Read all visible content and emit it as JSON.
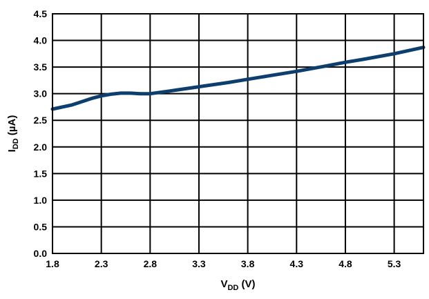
{
  "chart_data": {
    "type": "line",
    "xlabel": {
      "main": "V",
      "sub": "DD",
      "unit": " (V)"
    },
    "ylabel": {
      "main": "I",
      "sub": "DD",
      "unit": " (µA)"
    },
    "xlim": [
      1.8,
      5.6
    ],
    "ylim": [
      0.0,
      4.5
    ],
    "x_ticks": [
      1.8,
      2.3,
      2.8,
      3.3,
      3.8,
      4.3,
      4.8,
      5.3
    ],
    "x_tick_labels": [
      "1.8",
      "2.3",
      "2.8",
      "3.3",
      "3.8",
      "4.3",
      "4.8",
      "5.3"
    ],
    "y_ticks": [
      0.0,
      0.5,
      1.0,
      1.5,
      2.0,
      2.5,
      3.0,
      3.5,
      4.0,
      4.5
    ],
    "y_tick_labels": [
      "0.0",
      "0.5",
      "1.0",
      "1.5",
      "2.0",
      "2.5",
      "3.0",
      "3.5",
      "4.0",
      "4.5"
    ],
    "x_gridlines": [
      1.8,
      2.3,
      2.8,
      3.3,
      3.8,
      4.3,
      4.8,
      5.3,
      5.6
    ],
    "grid": true,
    "legend": "none",
    "series": [
      {
        "color": "#0d3f6e",
        "x": [
          1.8,
          2.0,
          2.2,
          2.3,
          2.4,
          2.5,
          2.6,
          2.7,
          2.8,
          3.0,
          3.3,
          3.6,
          3.8,
          4.0,
          4.3,
          4.6,
          4.8,
          5.0,
          5.3,
          5.6
        ],
        "y": [
          2.71,
          2.79,
          2.91,
          2.96,
          2.99,
          3.01,
          3.01,
          3.0,
          3.0,
          3.05,
          3.13,
          3.21,
          3.27,
          3.33,
          3.42,
          3.52,
          3.59,
          3.65,
          3.75,
          3.87
        ]
      }
    ]
  }
}
